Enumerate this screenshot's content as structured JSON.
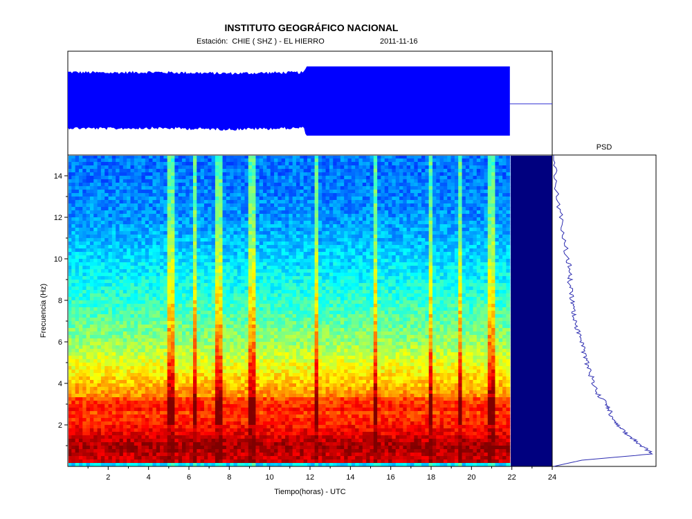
{
  "header": {
    "title": "INSTITUTO GEOGRÁFICO NACIONAL",
    "station": "Estación:  CHIE ( SHZ ) - EL HIERRO",
    "date": "2011-11-16"
  },
  "chart_data": [
    {
      "type": "line",
      "panel": "seismogram",
      "description_series": "Vertical-component seismic trace (full-day envelope)",
      "x_range": [
        0,
        24
      ],
      "data_end_hours": 21.9,
      "envelope_upper": [
        [
          0,
          0.88
        ],
        [
          2,
          0.86
        ],
        [
          4,
          0.88
        ],
        [
          6,
          0.86
        ],
        [
          8,
          0.84
        ],
        [
          10,
          0.86
        ],
        [
          11.7,
          0.87
        ],
        [
          11.8,
          1.0
        ],
        [
          21.9,
          1.0
        ]
      ],
      "envelope_lower": [
        [
          0,
          0.82
        ],
        [
          2,
          0.84
        ],
        [
          4,
          0.82
        ],
        [
          6,
          0.84
        ],
        [
          8,
          0.86
        ],
        [
          10,
          0.84
        ],
        [
          11.7,
          0.82
        ],
        [
          11.8,
          1.0
        ],
        [
          21.9,
          1.0
        ]
      ]
    },
    {
      "type": "heatmap",
      "panel": "spectrogram",
      "xlabel": "Tiempo(horas) - UTC",
      "ylabel": "Frecuencia  (Hz)",
      "xlim": [
        0,
        24
      ],
      "ylim": [
        0,
        15
      ],
      "x_ticks": [
        "2",
        "4",
        "6",
        "8",
        "10",
        "12",
        "14",
        "16",
        "18",
        "20",
        "22",
        "24"
      ],
      "y_ticks": [
        "2",
        "4",
        "6",
        "8",
        "10",
        "12",
        "14"
      ],
      "colormap": "jet",
      "data_end_hours": 21.9,
      "no_data_color": "#00007f",
      "energy_by_frequency_hz": [
        [
          0.5,
          0.93
        ],
        [
          1.0,
          0.97
        ],
        [
          1.5,
          0.9
        ],
        [
          2.0,
          0.86
        ],
        [
          3.0,
          0.78
        ],
        [
          4.0,
          0.68
        ],
        [
          5.0,
          0.6
        ],
        [
          6.0,
          0.52
        ],
        [
          8.0,
          0.42
        ],
        [
          10.0,
          0.34
        ],
        [
          12.0,
          0.27
        ],
        [
          14.0,
          0.24
        ],
        [
          15.0,
          0.24
        ]
      ],
      "vertical_streak_hours": [
        5.1,
        6.3,
        7.5,
        9.1,
        12.3,
        15.2,
        18.0,
        19.4,
        21.0
      ]
    },
    {
      "type": "line",
      "panel": "psd",
      "title": "PSD",
      "orientation": "vertical",
      "points_freq_hz": [
        0,
        0.3,
        0.6,
        0.9,
        1.2,
        1.5,
        1.8,
        2.1,
        2.4,
        2.7,
        3.0,
        3.5,
        4.0,
        4.5,
        5.0,
        5.5,
        6.0,
        6.5,
        7.0,
        7.5,
        8.0,
        8.5,
        9.0,
        9.5,
        10,
        11,
        12,
        13,
        14,
        15
      ],
      "points_rel_power": [
        0.0,
        0.28,
        0.98,
        0.9,
        0.82,
        0.74,
        0.68,
        0.62,
        0.58,
        0.55,
        0.52,
        0.44,
        0.4,
        0.36,
        0.33,
        0.3,
        0.28,
        0.24,
        0.22,
        0.2,
        0.18,
        0.17,
        0.16,
        0.16,
        0.14,
        0.1,
        0.07,
        0.04,
        0.02,
        0.0
      ]
    }
  ]
}
